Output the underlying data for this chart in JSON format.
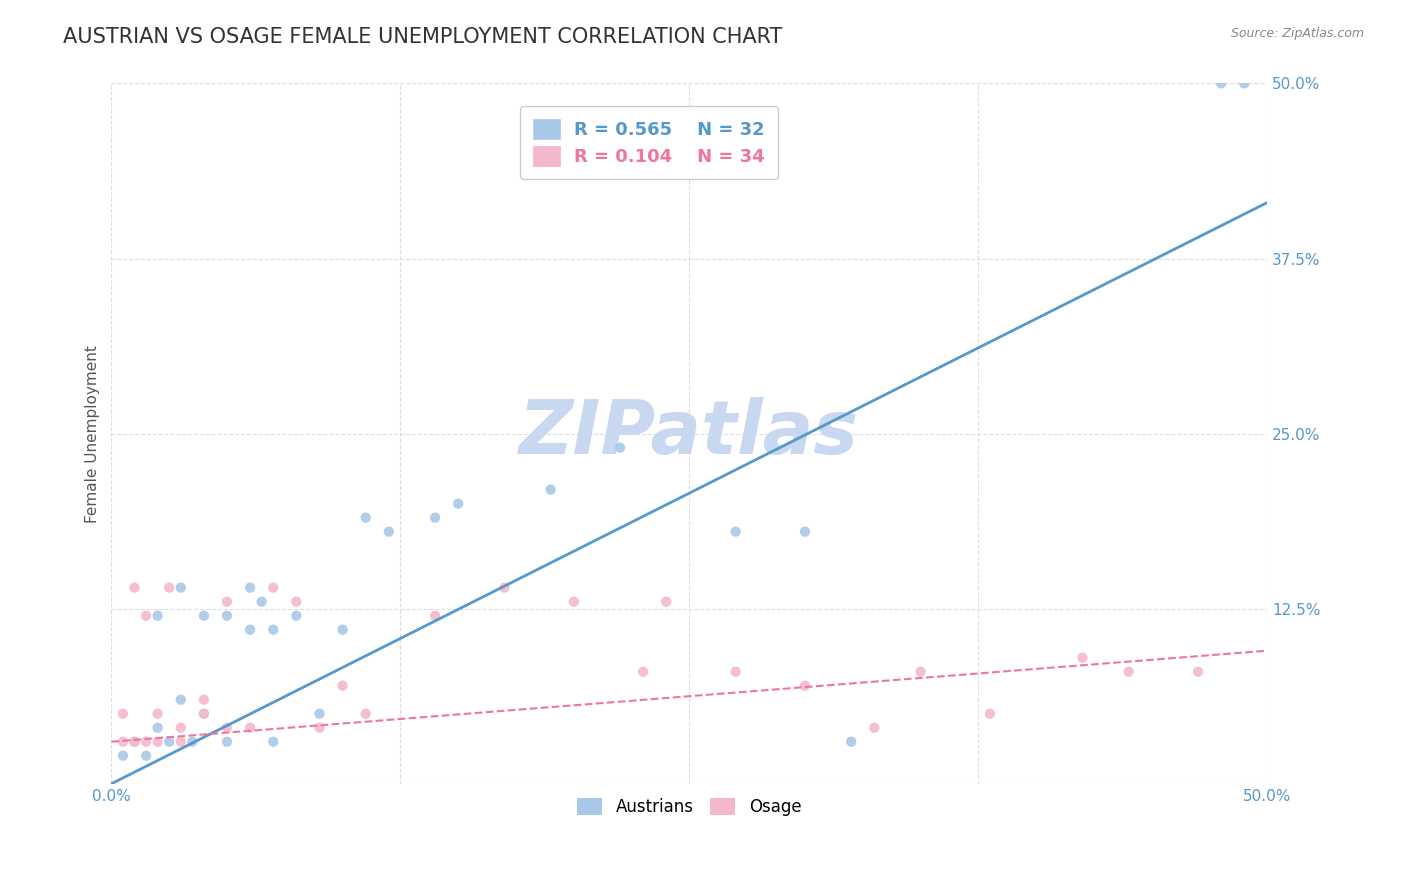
{
  "title": "AUSTRIAN VS OSAGE FEMALE UNEMPLOYMENT CORRELATION CHART",
  "source": "Source: ZipAtlas.com",
  "ylabel": "Female Unemployment",
  "xlim": [
    0.0,
    0.5
  ],
  "ylim": [
    0.0,
    0.5
  ],
  "watermark": "ZIPatlas",
  "legend_r1": "R = 0.565",
  "legend_n1": "N = 32",
  "legend_r2": "R = 0.104",
  "legend_n2": "N = 34",
  "blue_color": "#a8c8e8",
  "pink_color": "#f4b8cc",
  "blue_line_color": "#5599cc",
  "pink_line_color": "#ee7799",
  "austrians_scatter_x": [
    0.005,
    0.01,
    0.015,
    0.02,
    0.02,
    0.025,
    0.03,
    0.03,
    0.035,
    0.04,
    0.04,
    0.05,
    0.05,
    0.06,
    0.06,
    0.065,
    0.07,
    0.07,
    0.08,
    0.09,
    0.1,
    0.11,
    0.12,
    0.14,
    0.15,
    0.19,
    0.22,
    0.27,
    0.3,
    0.32,
    0.48,
    0.49
  ],
  "austrians_scatter_y": [
    0.02,
    0.03,
    0.02,
    0.04,
    0.12,
    0.03,
    0.06,
    0.14,
    0.03,
    0.05,
    0.12,
    0.03,
    0.12,
    0.11,
    0.14,
    0.13,
    0.11,
    0.03,
    0.12,
    0.05,
    0.11,
    0.19,
    0.18,
    0.19,
    0.2,
    0.21,
    0.24,
    0.18,
    0.18,
    0.03,
    0.5,
    0.5
  ],
  "osage_scatter_x": [
    0.005,
    0.005,
    0.01,
    0.01,
    0.015,
    0.015,
    0.02,
    0.02,
    0.025,
    0.03,
    0.03,
    0.04,
    0.04,
    0.05,
    0.05,
    0.06,
    0.07,
    0.08,
    0.09,
    0.1,
    0.11,
    0.14,
    0.17,
    0.2,
    0.23,
    0.24,
    0.27,
    0.3,
    0.33,
    0.35,
    0.38,
    0.42,
    0.44,
    0.47
  ],
  "osage_scatter_y": [
    0.03,
    0.05,
    0.03,
    0.14,
    0.03,
    0.12,
    0.03,
    0.05,
    0.14,
    0.03,
    0.04,
    0.05,
    0.06,
    0.04,
    0.13,
    0.04,
    0.14,
    0.13,
    0.04,
    0.07,
    0.05,
    0.12,
    0.14,
    0.13,
    0.08,
    0.13,
    0.08,
    0.07,
    0.04,
    0.08,
    0.05,
    0.09,
    0.08,
    0.08
  ],
  "blue_line_x0": 0.0,
  "blue_line_y0": 0.0,
  "blue_line_x1": 0.5,
  "blue_line_y1": 0.415,
  "pink_line_x0": 0.0,
  "pink_line_y0": 0.03,
  "pink_line_x1": 0.5,
  "pink_line_y1": 0.095,
  "background_color": "#ffffff",
  "title_color": "#333333",
  "title_fontsize": 15,
  "axis_label_color": "#555555",
  "tick_color": "#5599cc",
  "grid_color": "#dddddd",
  "watermark_color": "#c8d8f0",
  "source_color": "#888888",
  "legend_box_color": "#ddeeff",
  "legend_text_blue": "#5599cc",
  "legend_text_pink": "#ee7799"
}
